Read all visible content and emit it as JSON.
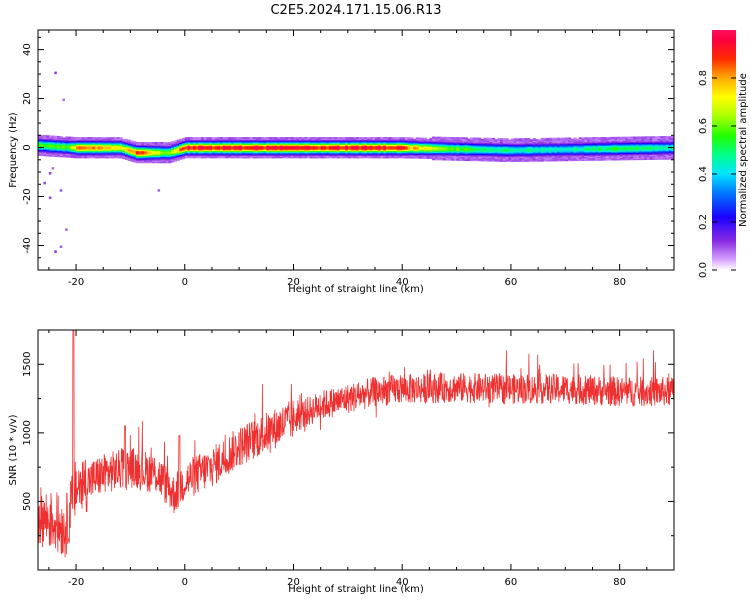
{
  "figure": {
    "title": "C2E5.2024.171.15.06.R13"
  },
  "chart_data": [
    {
      "type": "heatmap",
      "title": "C2E5.2024.171.15.06.R13",
      "xlabel": "Height of straight line (km)",
      "ylabel": "Frequency (Hz)",
      "xlim": [
        -27,
        90
      ],
      "ylim": [
        -50,
        48
      ],
      "xticks": [
        -20,
        0,
        20,
        40,
        60,
        80
      ],
      "xtick_labels": [
        "-20",
        "0",
        "20",
        "40",
        "60",
        "80"
      ],
      "yticks": [
        -40,
        -20,
        0,
        20,
        40
      ],
      "ytick_labels": [
        "-40",
        "-20",
        "0",
        "20",
        "40"
      ],
      "colorbar": {
        "label": "Normalized spectral amplitude",
        "range": [
          0,
          1
        ],
        "ticks": [
          0.0,
          0.2,
          0.4,
          0.6,
          0.8
        ],
        "tick_labels": [
          "0.0",
          "0.2",
          "0.4",
          "0.6",
          "0.8"
        ],
        "colormap": "spectral"
      },
      "band_center_hz": [
        {
          "x": -27,
          "f": 1
        },
        {
          "x": -20,
          "f": 0
        },
        {
          "x": -12,
          "f": 0
        },
        {
          "x": -9,
          "f": -2
        },
        {
          "x": -3,
          "f": -2
        },
        {
          "x": 0,
          "f": 0
        },
        {
          "x": 20,
          "f": 0
        },
        {
          "x": 40,
          "f": 0
        },
        {
          "x": 60,
          "f": -1
        },
        {
          "x": 90,
          "f": 0
        }
      ],
      "peak_amplitude": [
        {
          "x": -27,
          "v": 0.55
        },
        {
          "x": -22,
          "v": 0.6
        },
        {
          "x": -19,
          "v": 0.9
        },
        {
          "x": -12,
          "v": 0.7
        },
        {
          "x": -9,
          "v": 0.9
        },
        {
          "x": -3,
          "v": 0.6
        },
        {
          "x": 0,
          "v": 0.95
        },
        {
          "x": 20,
          "v": 0.95
        },
        {
          "x": 38,
          "v": 0.95
        },
        {
          "x": 45,
          "v": 0.7
        },
        {
          "x": 55,
          "v": 0.5
        },
        {
          "x": 70,
          "v": 0.45
        },
        {
          "x": 80,
          "v": 0.55
        },
        {
          "x": 90,
          "v": 0.45
        }
      ]
    },
    {
      "type": "line",
      "xlabel": "Height of straight line (km)",
      "ylabel": "SNR (10 * v/v)",
      "xlim": [
        -27,
        90
      ],
      "ylim": [
        0,
        1750
      ],
      "xticks": [
        -20,
        0,
        20,
        40,
        60,
        80
      ],
      "xtick_labels": [
        "-20",
        "0",
        "20",
        "40",
        "60",
        "80"
      ],
      "yticks": [
        500,
        1000,
        1500
      ],
      "ytick_labels": [
        "500",
        "1000",
        "1500"
      ],
      "color": "#f03030",
      "series": [
        {
          "mean": [
            {
              "x": -27,
              "y": 400
            },
            {
              "x": -24,
              "y": 350
            },
            {
              "x": -22,
              "y": 300
            },
            {
              "x": -20,
              "y": 600
            },
            {
              "x": -15,
              "y": 700
            },
            {
              "x": -10,
              "y": 750
            },
            {
              "x": -5,
              "y": 700
            },
            {
              "x": -2,
              "y": 550
            },
            {
              "x": 0,
              "y": 650
            },
            {
              "x": 5,
              "y": 750
            },
            {
              "x": 10,
              "y": 900
            },
            {
              "x": 15,
              "y": 1000
            },
            {
              "x": 20,
              "y": 1100
            },
            {
              "x": 25,
              "y": 1200
            },
            {
              "x": 30,
              "y": 1250
            },
            {
              "x": 35,
              "y": 1300
            },
            {
              "x": 40,
              "y": 1320
            },
            {
              "x": 50,
              "y": 1330
            },
            {
              "x": 60,
              "y": 1320
            },
            {
              "x": 70,
              "y": 1320
            },
            {
              "x": 80,
              "y": 1300
            },
            {
              "x": 90,
              "y": 1300
            }
          ],
          "spikes": [
            {
              "x": -20.5,
              "y": 1750
            },
            {
              "x": -11,
              "y": 1050
            },
            {
              "x": -1,
              "y": 980
            }
          ]
        }
      ]
    }
  ]
}
